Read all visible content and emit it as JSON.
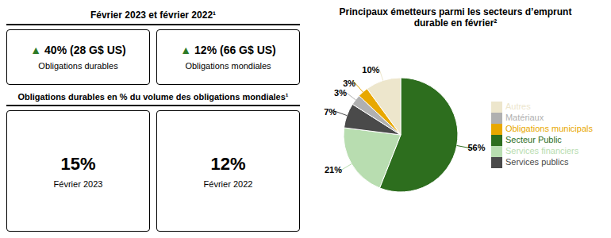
{
  "chart_data": {
    "type": "pie",
    "title": "Principaux émetteurs parmi les secteurs d’emprunt\ndurable en février²",
    "categories": [
      "Secteur Public",
      "Services financiers",
      "Services publics",
      "Matériaux",
      "Obligations municipals",
      "Autres"
    ],
    "values": [
      56,
      21,
      7,
      3,
      3,
      10
    ],
    "value_labels": [
      "56%",
      "21%",
      "7%",
      "3%",
      "3%",
      "10%"
    ],
    "colors": [
      "#2d6e1e",
      "#b8ddb0",
      "#4a4a4a",
      "#b0b0b0",
      "#e8a800",
      "#ede6cc"
    ],
    "data_labels": true,
    "legend": "right",
    "annotations": [
      {
        "text": "Février 2023 et février 2022¹"
      },
      {
        "text": "▲",
        "color": "#2d7a27"
      },
      {
        "text": "40% (28 G$ US)"
      },
      {
        "text": "Obligations durables"
      },
      {
        "text": "▲",
        "color": "#2d7a27"
      },
      {
        "text": "12% (66 G$ US)"
      },
      {
        "text": "Obligations mondiales"
      },
      {
        "text": "Obligations durables en % du volume des obligations mondiales¹"
      },
      {
        "text": "15%"
      },
      {
        "text": "Février 2023"
      },
      {
        "text": "12%"
      },
      {
        "text": "Février 2022"
      }
    ]
  }
}
